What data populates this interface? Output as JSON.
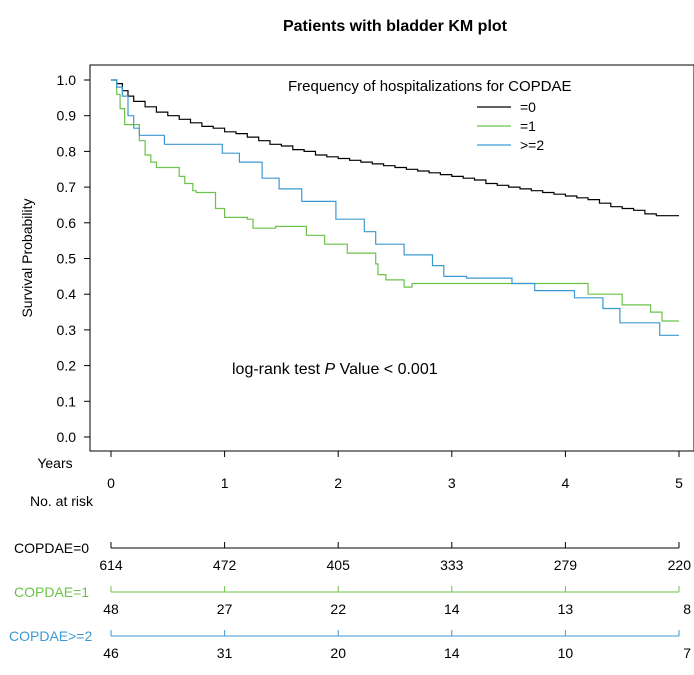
{
  "chart_data": {
    "type": "line",
    "subtype": "kaplan-meier",
    "title": "Patients with bladder KM plot",
    "xlabel": "Years",
    "ylabel": "Survival Probability",
    "xlim": [
      0,
      5
    ],
    "ylim": [
      0,
      1
    ],
    "x_ticks": [
      "0",
      "1",
      "2",
      "3",
      "4",
      "5"
    ],
    "y_ticks": [
      "0.0",
      "0.1",
      "0.2",
      "0.3",
      "0.4",
      "0.5",
      "0.6",
      "0.7",
      "0.8",
      "0.9",
      "1.0"
    ],
    "grid": false,
    "legend": {
      "title": "Frequency of hospitalizations for COPDAE",
      "position": "top-right",
      "entries": [
        "=0",
        "=1",
        ">=2"
      ]
    },
    "annotation": {
      "prefix": "log-rank test ",
      "italic": "P",
      "suffix": " Value < 0.001"
    },
    "series": [
      {
        "name": "=0",
        "color": "#000000",
        "points": [
          [
            0,
            1.0
          ],
          [
            0.05,
            0.99
          ],
          [
            0.1,
            0.97
          ],
          [
            0.15,
            0.955
          ],
          [
            0.2,
            0.94
          ],
          [
            0.3,
            0.925
          ],
          [
            0.4,
            0.91
          ],
          [
            0.5,
            0.9
          ],
          [
            0.6,
            0.89
          ],
          [
            0.7,
            0.88
          ],
          [
            0.8,
            0.87
          ],
          [
            0.9,
            0.865
          ],
          [
            1.0,
            0.855
          ],
          [
            1.1,
            0.85
          ],
          [
            1.2,
            0.84
          ],
          [
            1.3,
            0.83
          ],
          [
            1.4,
            0.82
          ],
          [
            1.5,
            0.815
          ],
          [
            1.6,
            0.805
          ],
          [
            1.7,
            0.8
          ],
          [
            1.8,
            0.79
          ],
          [
            1.9,
            0.785
          ],
          [
            2.0,
            0.78
          ],
          [
            2.1,
            0.775
          ],
          [
            2.2,
            0.77
          ],
          [
            2.3,
            0.765
          ],
          [
            2.4,
            0.76
          ],
          [
            2.5,
            0.755
          ],
          [
            2.6,
            0.75
          ],
          [
            2.7,
            0.745
          ],
          [
            2.8,
            0.74
          ],
          [
            2.9,
            0.735
          ],
          [
            3.0,
            0.73
          ],
          [
            3.1,
            0.725
          ],
          [
            3.2,
            0.72
          ],
          [
            3.3,
            0.71
          ],
          [
            3.4,
            0.705
          ],
          [
            3.5,
            0.7
          ],
          [
            3.6,
            0.695
          ],
          [
            3.7,
            0.69
          ],
          [
            3.8,
            0.685
          ],
          [
            3.9,
            0.68
          ],
          [
            4.0,
            0.675
          ],
          [
            4.1,
            0.67
          ],
          [
            4.2,
            0.665
          ],
          [
            4.3,
            0.655
          ],
          [
            4.4,
            0.645
          ],
          [
            4.5,
            0.64
          ],
          [
            4.6,
            0.635
          ],
          [
            4.7,
            0.625
          ],
          [
            4.8,
            0.62
          ],
          [
            4.9,
            0.62
          ],
          [
            5.0,
            0.62
          ]
        ]
      },
      {
        "name": "=1",
        "color": "#6cc24a",
        "points": [
          [
            0,
            1.0
          ],
          [
            0.05,
            0.96
          ],
          [
            0.08,
            0.92
          ],
          [
            0.12,
            0.875
          ],
          [
            0.2,
            0.875
          ],
          [
            0.25,
            0.83
          ],
          [
            0.3,
            0.79
          ],
          [
            0.35,
            0.77
          ],
          [
            0.4,
            0.755
          ],
          [
            0.55,
            0.755
          ],
          [
            0.6,
            0.73
          ],
          [
            0.65,
            0.71
          ],
          [
            0.72,
            0.69
          ],
          [
            0.75,
            0.685
          ],
          [
            0.9,
            0.685
          ],
          [
            0.92,
            0.64
          ],
          [
            1.0,
            0.615
          ],
          [
            1.2,
            0.61
          ],
          [
            1.25,
            0.585
          ],
          [
            1.3,
            0.585
          ],
          [
            1.45,
            0.59
          ],
          [
            1.7,
            0.59
          ],
          [
            1.72,
            0.565
          ],
          [
            1.85,
            0.565
          ],
          [
            1.88,
            0.54
          ],
          [
            2.05,
            0.54
          ],
          [
            2.08,
            0.515
          ],
          [
            2.3,
            0.515
          ],
          [
            2.33,
            0.485
          ],
          [
            2.35,
            0.455
          ],
          [
            2.4,
            0.455
          ],
          [
            2.42,
            0.44
          ],
          [
            2.55,
            0.44
          ],
          [
            2.58,
            0.42
          ],
          [
            2.65,
            0.43
          ],
          [
            4.15,
            0.43
          ],
          [
            4.2,
            0.4
          ],
          [
            4.45,
            0.4
          ],
          [
            4.5,
            0.37
          ],
          [
            4.7,
            0.37
          ],
          [
            4.75,
            0.35
          ],
          [
            4.8,
            0.35
          ],
          [
            4.85,
            0.325
          ],
          [
            5.0,
            0.325
          ]
        ]
      },
      {
        "name": ">=2",
        "color": "#3d9ad1",
        "points": [
          [
            0,
            1.0
          ],
          [
            0.05,
            0.98
          ],
          [
            0.1,
            0.955
          ],
          [
            0.15,
            0.9
          ],
          [
            0.2,
            0.865
          ],
          [
            0.25,
            0.845
          ],
          [
            0.45,
            0.845
          ],
          [
            0.47,
            0.82
          ],
          [
            0.95,
            0.82
          ],
          [
            0.98,
            0.795
          ],
          [
            1.1,
            0.795
          ],
          [
            1.13,
            0.77
          ],
          [
            1.3,
            0.77
          ],
          [
            1.33,
            0.725
          ],
          [
            1.45,
            0.725
          ],
          [
            1.48,
            0.695
          ],
          [
            1.65,
            0.695
          ],
          [
            1.68,
            0.66
          ],
          [
            1.95,
            0.66
          ],
          [
            1.98,
            0.61
          ],
          [
            2.2,
            0.61
          ],
          [
            2.23,
            0.575
          ],
          [
            2.3,
            0.575
          ],
          [
            2.33,
            0.54
          ],
          [
            2.55,
            0.54
          ],
          [
            2.58,
            0.51
          ],
          [
            2.8,
            0.51
          ],
          [
            2.83,
            0.48
          ],
          [
            2.9,
            0.48
          ],
          [
            2.93,
            0.45
          ],
          [
            3.1,
            0.45
          ],
          [
            3.13,
            0.445
          ],
          [
            3.5,
            0.445
          ],
          [
            3.53,
            0.43
          ],
          [
            3.7,
            0.43
          ],
          [
            3.73,
            0.41
          ],
          [
            4.05,
            0.41
          ],
          [
            4.08,
            0.39
          ],
          [
            4.3,
            0.39
          ],
          [
            4.33,
            0.36
          ],
          [
            4.45,
            0.36
          ],
          [
            4.48,
            0.32
          ],
          [
            4.8,
            0.32
          ],
          [
            4.83,
            0.285
          ],
          [
            5.0,
            0.285
          ]
        ]
      }
    ]
  },
  "risk_table": {
    "title": "No. at risk",
    "rows": [
      {
        "label": "COPDAE=0",
        "color": "#000000",
        "values": [
          "614",
          "472",
          "405",
          "333",
          "279",
          "220"
        ]
      },
      {
        "label": "COPDAE=1",
        "color": "#6cc24a",
        "values": [
          "48",
          "27",
          "22",
          "14",
          "13",
          "8"
        ]
      },
      {
        "label": "COPDAE>=2",
        "color": "#3d9ad1",
        "values": [
          "46",
          "31",
          "20",
          "14",
          "10",
          "7"
        ]
      }
    ]
  }
}
